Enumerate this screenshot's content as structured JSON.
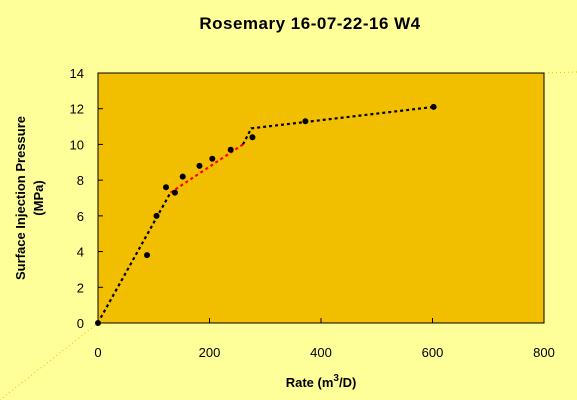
{
  "chart_data": {
    "type": "scatter",
    "title": "Rosemary 16-07-22-16 W4",
    "xlabel": "Rate (m",
    "xlabel_sup": "3",
    "xlabel_tail": "/D)",
    "ylabel_line1": "Surface Injection Pressure",
    "ylabel_line2": "(MPa)",
    "xlim": [
      0,
      800
    ],
    "ylim": [
      0,
      14
    ],
    "xticks": [
      0,
      200,
      400,
      600,
      800
    ],
    "yticks": [
      0,
      2,
      4,
      6,
      8,
      10,
      12,
      14
    ],
    "grid": false,
    "legend": "none",
    "colors": {
      "plot_bg": "#f2be00",
      "page_bg": "#ffff99",
      "points": "#000000",
      "fit_black": "#000000",
      "fit_red": "#ff0000"
    },
    "series": [
      {
        "points": [
          {
            "x": 0,
            "y": 0.0
          },
          {
            "x": 88,
            "y": 3.8
          },
          {
            "x": 105,
            "y": 6.0
          },
          {
            "x": 122,
            "y": 7.6
          },
          {
            "x": 138,
            "y": 7.3
          },
          {
            "x": 152,
            "y": 8.2
          },
          {
            "x": 182,
            "y": 8.8
          },
          {
            "x": 205,
            "y": 9.2
          },
          {
            "x": 238,
            "y": 9.7
          },
          {
            "x": 277,
            "y": 10.4
          },
          {
            "x": 372,
            "y": 11.3
          },
          {
            "x": 602,
            "y": 12.1
          }
        ]
      }
    ],
    "fit_lines": [
      {
        "color": "black",
        "points": [
          {
            "x": 5,
            "y": 0.3
          },
          {
            "x": 130,
            "y": 7.3
          }
        ]
      },
      {
        "color": "red",
        "points": [
          {
            "x": 130,
            "y": 7.3
          },
          {
            "x": 260,
            "y": 10.0
          }
        ]
      },
      {
        "color": "black",
        "points": [
          {
            "x": 260,
            "y": 10.0
          },
          {
            "x": 275,
            "y": 10.9
          },
          {
            "x": 602,
            "y": 12.1
          }
        ]
      }
    ]
  }
}
